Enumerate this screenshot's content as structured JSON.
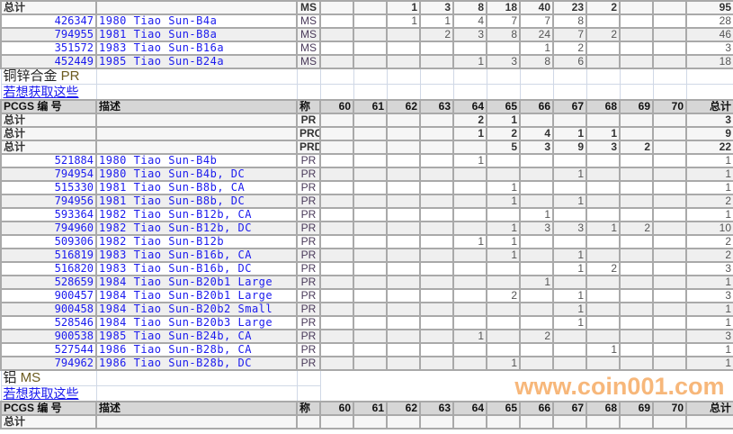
{
  "grades": [
    "60",
    "61",
    "62",
    "63",
    "64",
    "65",
    "66",
    "67",
    "68",
    "69",
    "70"
  ],
  "header": {
    "id": "PCGS 编 号",
    "desc": "描述",
    "grade": "称",
    "total": "总计"
  },
  "total_label": "总计",
  "watermark": "www.coin001.com",
  "sections": [
    {
      "title": "",
      "grade": "",
      "link": "",
      "show_header": false,
      "totals": [
        {
          "grade": "MS",
          "values": [
            null,
            null,
            1,
            3,
            8,
            18,
            40,
            23,
            2,
            null,
            null
          ],
          "total": 95
        }
      ],
      "rows": [
        {
          "id": "426347",
          "desc": "1980 Tiao Sun-B4a",
          "grade": "MS",
          "values": [
            null,
            null,
            1,
            1,
            4,
            7,
            7,
            8,
            null,
            null,
            null
          ],
          "total": 28
        },
        {
          "id": "794955",
          "desc": "1981 Tiao Sun-B8a",
          "grade": "MS",
          "values": [
            null,
            null,
            null,
            2,
            3,
            8,
            24,
            7,
            2,
            null,
            null
          ],
          "total": 46
        },
        {
          "id": "351572",
          "desc": "1983 Tiao Sun-B16a",
          "grade": "MS",
          "values": [
            null,
            null,
            null,
            null,
            null,
            null,
            1,
            2,
            null,
            null,
            null
          ],
          "total": 3
        },
        {
          "id": "452449",
          "desc": "1985 Tiao Sun-B24a",
          "grade": "MS",
          "values": [
            null,
            null,
            null,
            null,
            1,
            3,
            8,
            6,
            null,
            null,
            null
          ],
          "total": 18
        }
      ]
    },
    {
      "title": "铜锌合金",
      "grade": "PR",
      "link": "若想获取这些",
      "show_header": true,
      "totals": [
        {
          "grade": "PR",
          "values": [
            null,
            null,
            null,
            null,
            2,
            1,
            null,
            null,
            null,
            null,
            null
          ],
          "total": 3
        },
        {
          "grade": "PRC",
          "values": [
            null,
            null,
            null,
            null,
            1,
            2,
            4,
            1,
            1,
            null,
            null
          ],
          "total": 9
        },
        {
          "grade": "PRD",
          "values": [
            null,
            null,
            null,
            null,
            null,
            5,
            3,
            9,
            3,
            2,
            null
          ],
          "total": 22
        }
      ],
      "rows": [
        {
          "id": "521884",
          "desc": "1980 Tiao Sun-B4b",
          "grade": "PR",
          "values": [
            null,
            null,
            null,
            null,
            1,
            null,
            null,
            null,
            null,
            null,
            null
          ],
          "total": 1
        },
        {
          "id": "794954",
          "desc": "1980 Tiao Sun-B4b, DC",
          "grade": "PR",
          "values": [
            null,
            null,
            null,
            null,
            null,
            null,
            null,
            1,
            null,
            null,
            null
          ],
          "total": 1
        },
        {
          "id": "515330",
          "desc": "1981 Tiao Sun-B8b, CA",
          "grade": "PR",
          "values": [
            null,
            null,
            null,
            null,
            null,
            1,
            null,
            null,
            null,
            null,
            null
          ],
          "total": 1
        },
        {
          "id": "794956",
          "desc": "1981 Tiao Sun-B8b, DC",
          "grade": "PR",
          "values": [
            null,
            null,
            null,
            null,
            null,
            1,
            null,
            1,
            null,
            null,
            null
          ],
          "total": 2
        },
        {
          "id": "593364",
          "desc": "1982 Tiao Sun-B12b, CA",
          "grade": "PR",
          "values": [
            null,
            null,
            null,
            null,
            null,
            null,
            1,
            null,
            null,
            null,
            null
          ],
          "total": 1
        },
        {
          "id": "794960",
          "desc": "1982 Tiao Sun-B12b, DC",
          "grade": "PR",
          "values": [
            null,
            null,
            null,
            null,
            null,
            1,
            3,
            3,
            1,
            2,
            null
          ],
          "total": 10
        },
        {
          "id": "509306",
          "desc": "1982 Tiao Sun-B12b",
          "grade": "PR",
          "values": [
            null,
            null,
            null,
            null,
            1,
            1,
            null,
            null,
            null,
            null,
            null
          ],
          "total": 2
        },
        {
          "id": "516819",
          "desc": "1983 Tiao Sun-B16b, CA",
          "grade": "PR",
          "values": [
            null,
            null,
            null,
            null,
            null,
            1,
            null,
            1,
            null,
            null,
            null
          ],
          "total": 2
        },
        {
          "id": "516820",
          "desc": "1983 Tiao Sun-B16b, DC",
          "grade": "PR",
          "values": [
            null,
            null,
            null,
            null,
            null,
            null,
            null,
            1,
            2,
            null,
            null
          ],
          "total": 3
        },
        {
          "id": "528659",
          "desc": "1984 Tiao Sun-B20b1 Large",
          "grade": "PR",
          "values": [
            null,
            null,
            null,
            null,
            null,
            null,
            1,
            null,
            null,
            null,
            null
          ],
          "total": 1
        },
        {
          "id": "900457",
          "desc": "1984 Tiao Sun-B20b1 Large",
          "grade": "PR",
          "values": [
            null,
            null,
            null,
            null,
            null,
            2,
            null,
            1,
            null,
            null,
            null
          ],
          "total": 3
        },
        {
          "id": "900458",
          "desc": "1984 Tiao Sun-B20b2 Small",
          "grade": "PR",
          "values": [
            null,
            null,
            null,
            null,
            null,
            null,
            null,
            1,
            null,
            null,
            null
          ],
          "total": 1
        },
        {
          "id": "528546",
          "desc": "1984 Tiao Sun-B20b3 Large",
          "grade": "PR",
          "values": [
            null,
            null,
            null,
            null,
            null,
            null,
            null,
            1,
            null,
            null,
            null
          ],
          "total": 1
        },
        {
          "id": "900538",
          "desc": "1985 Tiao Sun-B24b, CA",
          "grade": "PR",
          "values": [
            null,
            null,
            null,
            null,
            1,
            null,
            2,
            null,
            null,
            null,
            null
          ],
          "total": 3
        },
        {
          "id": "527544",
          "desc": "1986 Tiao Sun-B28b, CA",
          "grade": "PR",
          "values": [
            null,
            null,
            null,
            null,
            null,
            null,
            null,
            null,
            1,
            null,
            null
          ],
          "total": 1
        },
        {
          "id": "794962",
          "desc": "1986 Tiao Sun-B28b, DC",
          "grade": "PR",
          "values": [
            null,
            null,
            null,
            null,
            null,
            1,
            null,
            null,
            null,
            null,
            null
          ],
          "total": 1
        }
      ]
    },
    {
      "title": "铝",
      "grade": "MS",
      "link": "若想获取这些",
      "show_header": true,
      "totals": [
        {
          "grade": "",
          "values": [
            null,
            null,
            null,
            null,
            null,
            null,
            null,
            null,
            null,
            null,
            null
          ],
          "total": null
        }
      ],
      "rows": []
    }
  ]
}
